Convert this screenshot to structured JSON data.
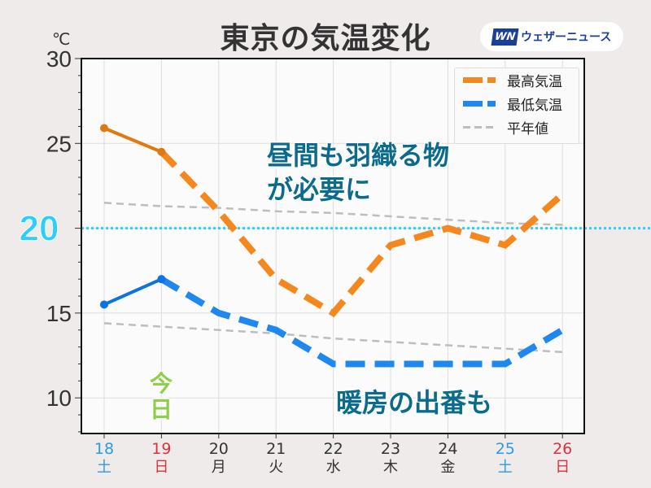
{
  "header": {
    "title": "東京の気温変化",
    "logo_mark": "WN",
    "logo_text": "ウェザーニュース"
  },
  "annotations": {
    "top_line1": "昼間も羽織る物",
    "top_line2": "が必要に",
    "bottom": "暖房の出番も",
    "today": "今日"
  },
  "chart_data": {
    "type": "line",
    "title": "東京の気温変化",
    "ylabel": "℃",
    "ylim": [
      7.9,
      30
    ],
    "yticks": [
      10,
      15,
      20,
      25,
      30
    ],
    "highlight_y": 20,
    "categories": [
      "18",
      "19",
      "20",
      "21",
      "22",
      "23",
      "24",
      "25",
      "26"
    ],
    "weekdays": [
      "土",
      "日",
      "月",
      "火",
      "水",
      "木",
      "金",
      "土",
      "日"
    ],
    "day_colors": [
      "#2b9be0",
      "#e0303a",
      "#333333",
      "#333333",
      "#333333",
      "#333333",
      "#333333",
      "#2b9be0",
      "#e0303a"
    ],
    "observed_until_index": 1,
    "series": [
      {
        "name": "最高気温",
        "color": "#f5871f",
        "observed_color": "#e07a10",
        "values": [
          25.9,
          24.5,
          21,
          17,
          15,
          19,
          20,
          19,
          22
        ]
      },
      {
        "name": "最低気温",
        "color": "#1e88f0",
        "observed_color": "#0a74e0",
        "values": [
          15.5,
          17,
          15,
          14,
          12,
          12,
          12,
          12,
          14
        ]
      },
      {
        "name": "平年値",
        "color": "#bdbdbd",
        "values": [
          [
            21.5,
            21.3,
            21.2,
            21.0,
            20.9,
            20.7,
            20.5,
            20.3,
            20.2
          ],
          [
            14.4,
            14.2,
            14.0,
            13.8,
            13.5,
            13.3,
            13.1,
            12.9,
            12.7
          ]
        ]
      }
    ],
    "legend": "top-right",
    "grid": true
  }
}
